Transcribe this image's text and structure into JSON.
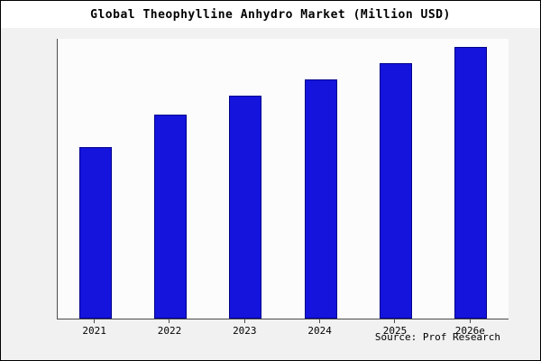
{
  "title": "Global Theophylline Anhydro Market (Million USD)",
  "source_note": "Source: Prof Research",
  "colors": {
    "bar_fill": "#1414dd",
    "bar_edge": "#00008b",
    "axis": "#4d4d4d",
    "figure_background": "#f1f1f1",
    "plot_background": "#fcfcfc"
  },
  "chart_data": {
    "type": "bar",
    "title": "Global Theophylline Anhydro Market (Million USD)",
    "categories": [
      "2021",
      "2022",
      "2023",
      "2024",
      "2025",
      "2026e"
    ],
    "values": [
      63,
      75,
      82,
      88,
      94,
      100
    ],
    "xlabel": "",
    "ylabel": "",
    "ylim": [
      0,
      103
    ],
    "grid": false,
    "legend": null,
    "bar_color": "#1414dd",
    "bar_edge_color": "#00008b",
    "annotations": [
      "Source: Prof Research"
    ]
  }
}
